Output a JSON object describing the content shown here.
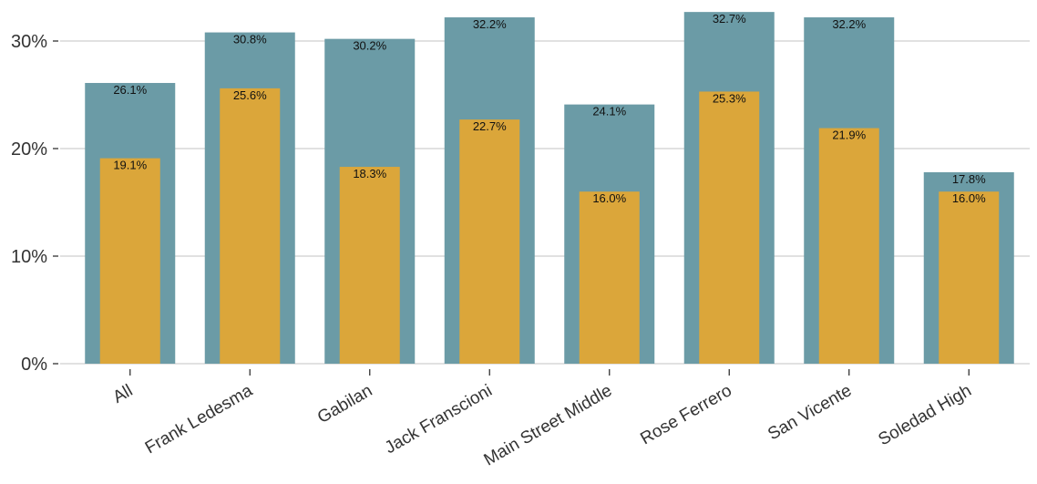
{
  "chart_data": {
    "type": "bar",
    "title": "",
    "xlabel": "",
    "ylabel": "",
    "ylim": [
      0,
      33
    ],
    "yticks": [
      0,
      10,
      20,
      30
    ],
    "ytick_labels": [
      "0%",
      "10%",
      "20%",
      "30%"
    ],
    "grid": "horizontal",
    "legend": "none",
    "categories": [
      "All",
      "Frank Ledesma",
      "Gabilan",
      "Jack Franscioni",
      "Main Street Middle",
      "Rose Ferrero",
      "San Vicente",
      "Soledad High"
    ],
    "series": [
      {
        "color": "#6b9ba6",
        "values": [
          26.1,
          30.8,
          30.2,
          32.2,
          24.1,
          32.7,
          32.2,
          17.8
        ],
        "labels": [
          "26.1%",
          "30.8%",
          "30.2%",
          "32.2%",
          "24.1%",
          "32.7%",
          "32.2%",
          "17.8%"
        ]
      },
      {
        "color": "#dba63a",
        "values": [
          19.1,
          25.6,
          18.3,
          22.7,
          16.0,
          25.3,
          21.9,
          16.0
        ],
        "labels": [
          "19.1%",
          "25.6%",
          "18.3%",
          "22.7%",
          "16.0%",
          "25.3%",
          "21.9%",
          "16.0%"
        ]
      }
    ]
  }
}
